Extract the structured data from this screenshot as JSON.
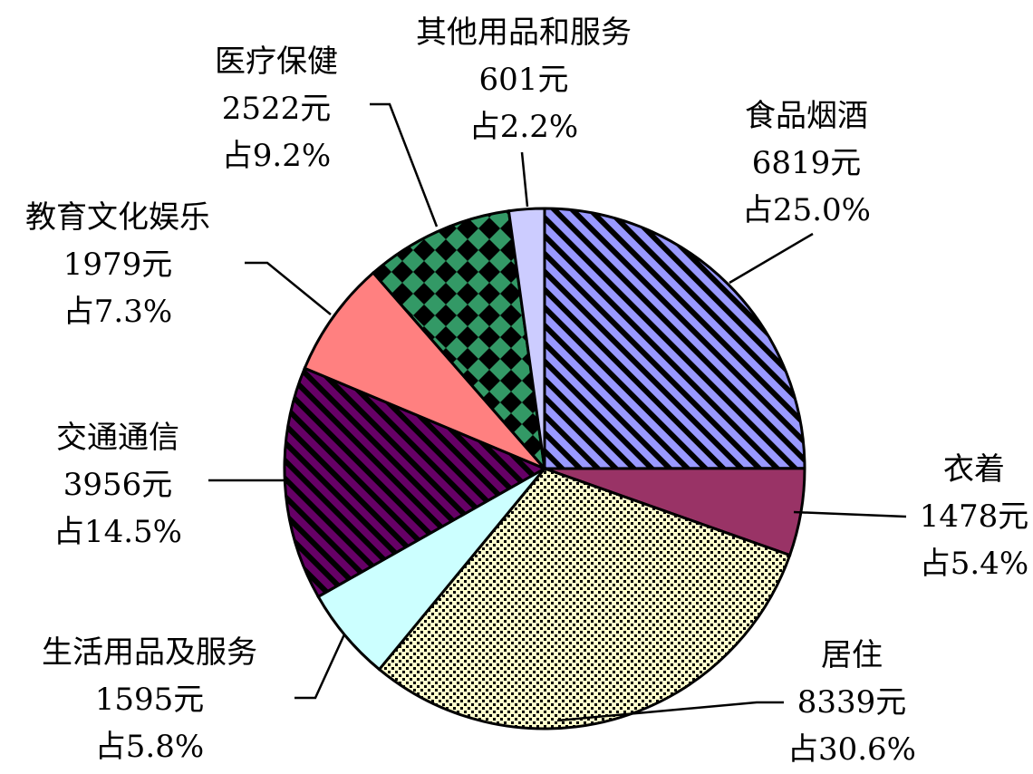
{
  "chart_data": {
    "type": "pie",
    "categories": [
      "食品烟酒",
      "衣着",
      "居住",
      "生活用品及服务",
      "交通通信",
      "教育文化娱乐",
      "医疗保健",
      "其他用品和服务"
    ],
    "values": [
      6819,
      1478,
      8339,
      1595,
      3956,
      1979,
      2522,
      601
    ],
    "value_labels": [
      "6819元",
      "1478元",
      "8339元",
      "1595元",
      "3956元",
      "1979元",
      "2522元",
      "601元"
    ],
    "percents": [
      25.0,
      5.4,
      30.6,
      5.8,
      14.5,
      7.3,
      9.2,
      2.2
    ],
    "percent_labels": [
      "占25.0%",
      "占5.4%",
      "占30.6%",
      "占5.8%",
      "占14.5%",
      "占7.3%",
      "占9.2%",
      "占2.2%"
    ],
    "colors": [
      "#9999ff",
      "#993366",
      "#ffffcc",
      "#ccffff",
      "#660066",
      "#ff8080",
      "#339966",
      "#ccccff"
    ],
    "patterns": [
      "stripes",
      "none",
      "checker",
      "none",
      "stripes",
      "none",
      "diamonds",
      "none"
    ]
  }
}
